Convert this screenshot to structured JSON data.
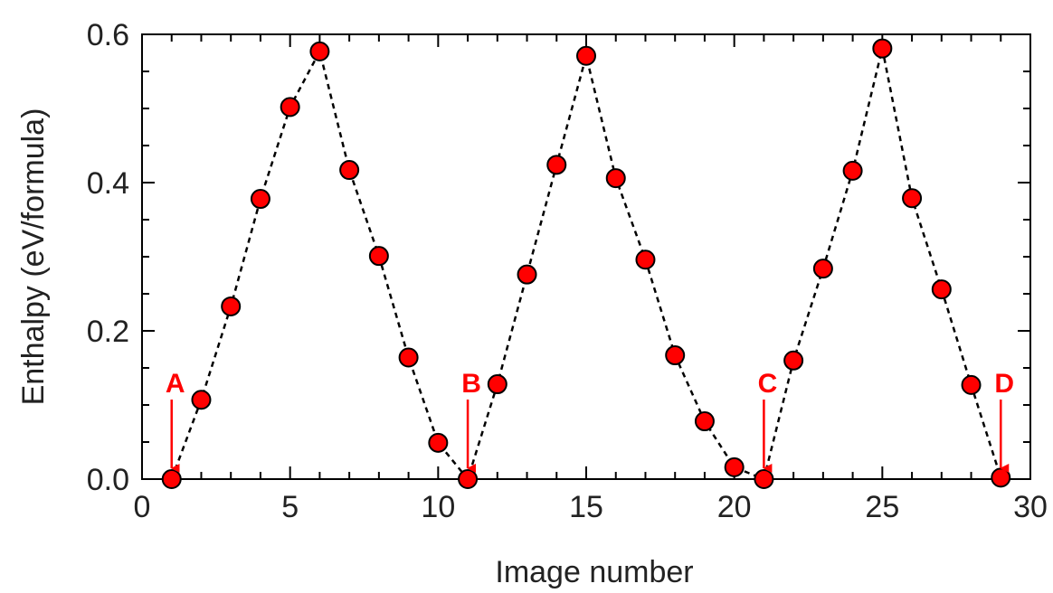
{
  "chart_data": {
    "type": "scatter",
    "xlabel": "Image number",
    "ylabel": "Enthalpy (eV/formula)",
    "xlim": [
      0,
      30
    ],
    "ylim": [
      0,
      0.6
    ],
    "xticks": [
      0,
      5,
      10,
      15,
      20,
      25,
      30
    ],
    "xtick_labels": [
      "0",
      "5",
      "10",
      "15",
      "20",
      "25",
      "30"
    ],
    "yticks": [
      0.0,
      0.2,
      0.4,
      0.6
    ],
    "ytick_labels": [
      "0.0",
      "0.2",
      "0.4",
      "0.6"
    ],
    "grid": false,
    "line_style": "dashed",
    "colors": {
      "marker": "#ff0000",
      "marker_edge": "#000000",
      "line": "#000000",
      "annotation": "#ff0000"
    },
    "series": [
      {
        "x": [
          1,
          2,
          3,
          4,
          5,
          6,
          7,
          8,
          9,
          10,
          11,
          12,
          13,
          14,
          15,
          16,
          17,
          18,
          19,
          20,
          21,
          22,
          23,
          24,
          25,
          26,
          27,
          28,
          29
        ],
        "y": [
          0.0,
          0.107,
          0.233,
          0.378,
          0.502,
          0.577,
          0.417,
          0.301,
          0.164,
          0.049,
          0.0,
          0.128,
          0.276,
          0.424,
          0.571,
          0.406,
          0.296,
          0.167,
          0.078,
          0.016,
          0.0,
          0.16,
          0.284,
          0.416,
          0.581,
          0.379,
          0.256,
          0.127,
          0.002
        ]
      }
    ],
    "annotations": [
      {
        "text": "A",
        "x": 1,
        "y": 0.0
      },
      {
        "text": "B",
        "x": 11,
        "y": 0.0
      },
      {
        "text": "C",
        "x": 21,
        "y": 0.0
      },
      {
        "text": "D",
        "x": 29,
        "y": 0.0
      }
    ]
  }
}
